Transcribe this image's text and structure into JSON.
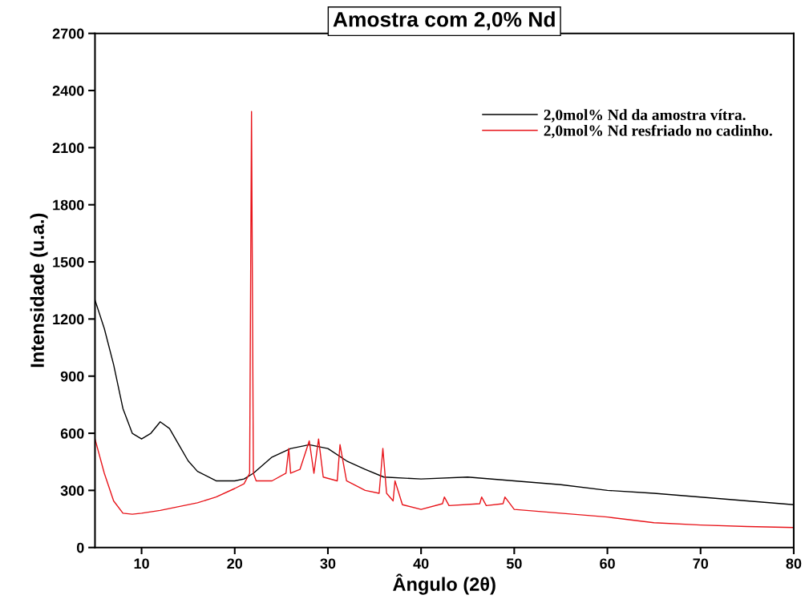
{
  "chart_data": {
    "type": "line",
    "title": "Amostra com 2,0% Nd",
    "xlabel": "Ângulo (2θ)",
    "ylabel": "Intensidade (u.a.)",
    "xlim": [
      5,
      80
    ],
    "ylim": [
      0,
      2700
    ],
    "xticks": [
      10,
      20,
      30,
      40,
      50,
      60,
      70,
      80
    ],
    "yticks": [
      0,
      300,
      600,
      900,
      1200,
      1500,
      1800,
      2100,
      2400,
      2700
    ],
    "grid": false,
    "legend": "top right",
    "marker": "none",
    "line_style": "solid",
    "series": [
      {
        "name": "2,0mol% Nd da amostra vítra.",
        "color": "#000000",
        "x": [
          5,
          6,
          7,
          8,
          9,
          10,
          11,
          12,
          13,
          14,
          15,
          16,
          18,
          20,
          21,
          22,
          24,
          26,
          28,
          30,
          32,
          34,
          36,
          40,
          45,
          50,
          55,
          60,
          65,
          70,
          75,
          80
        ],
        "values": [
          1300,
          1150,
          960,
          730,
          600,
          570,
          600,
          660,
          625,
          540,
          455,
          400,
          350,
          350,
          360,
          390,
          475,
          520,
          540,
          520,
          455,
          410,
          370,
          360,
          370,
          350,
          330,
          300,
          285,
          265,
          245,
          225
        ]
      },
      {
        "name": "2,0mol% Nd resfriado no cadinho.",
        "color": "#e8141a",
        "x": [
          5,
          6,
          7,
          8,
          9,
          10,
          12,
          14,
          16,
          18,
          20,
          21,
          21.6,
          21.8,
          22.0,
          22.3,
          24,
          25.5,
          25.8,
          26,
          27,
          28,
          28.5,
          29,
          29.5,
          31,
          31.3,
          32,
          34,
          35.5,
          35.9,
          36.3,
          37,
          37.2,
          38,
          40,
          42.3,
          42.5,
          43,
          46.3,
          46.5,
          47,
          48.8,
          49,
          50,
          55,
          60,
          65,
          70,
          75,
          80
        ],
        "values": [
          570,
          390,
          245,
          180,
          175,
          180,
          195,
          215,
          235,
          265,
          310,
          335,
          390,
          2290,
          390,
          350,
          350,
          390,
          520,
          390,
          410,
          560,
          390,
          570,
          370,
          350,
          540,
          350,
          300,
          285,
          520,
          285,
          245,
          350,
          225,
          200,
          230,
          265,
          220,
          230,
          265,
          220,
          230,
          265,
          200,
          180,
          160,
          130,
          118,
          110,
          105
        ]
      }
    ]
  }
}
